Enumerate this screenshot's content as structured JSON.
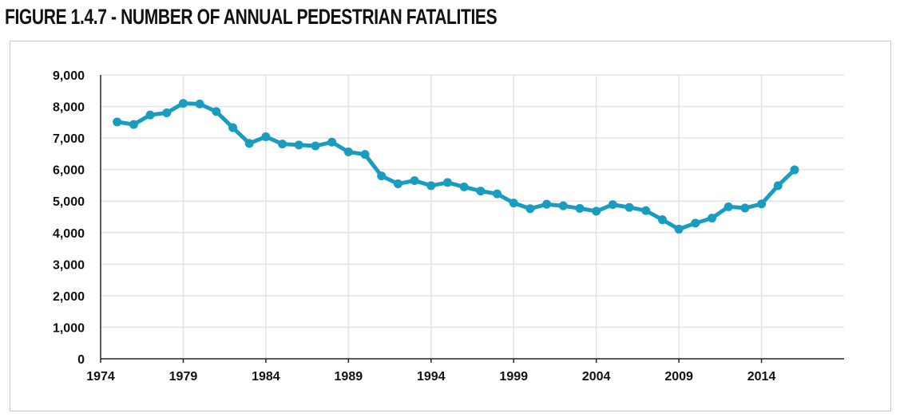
{
  "title": "FIGURE 1.4.7 - NUMBER OF ANNUAL PEDESTRIAN FATALITIES",
  "colors": {
    "line": "#1a9cc0",
    "grid": "#e3e3e3",
    "axis": "#222222",
    "text": "#111111"
  },
  "chart_data": {
    "type": "line",
    "title": "FIGURE 1.4.7 - NUMBER OF ANNUAL PEDESTRIAN FATALITIES",
    "xlabel": "",
    "ylabel": "",
    "xlim": [
      1974,
      2019
    ],
    "ylim": [
      0,
      9000
    ],
    "grid": true,
    "legend": "none",
    "x_ticks": [
      1974,
      1979,
      1984,
      1989,
      1994,
      1999,
      2004,
      2009,
      2014
    ],
    "x_tick_labels": [
      "1974",
      "1979",
      "1984",
      "1989",
      "1994",
      "1999",
      "2004",
      "2009",
      "2014"
    ],
    "y_ticks": [
      0,
      1000,
      2000,
      3000,
      4000,
      5000,
      6000,
      7000,
      8000,
      9000
    ],
    "y_tick_labels": [
      "0",
      "1,000",
      "2,000",
      "3,000",
      "4,000",
      "5,000",
      "6,000",
      "7,000",
      "8,000",
      "9,000"
    ],
    "series": [
      {
        "x": [
          1975,
          1976,
          1977,
          1978,
          1979,
          1980,
          1981,
          1982,
          1983,
          1984,
          1985,
          1986,
          1987,
          1988,
          1989,
          1990,
          1991,
          1992,
          1993,
          1994,
          1995,
          1996,
          1997,
          1998,
          1999,
          2000,
          2001,
          2002,
          2003,
          2004,
          2005,
          2006,
          2007,
          2008,
          2009,
          2010,
          2011,
          2012,
          2013,
          2014,
          2015,
          2016
        ],
        "values": [
          7510,
          7430,
          7730,
          7800,
          8100,
          8080,
          7840,
          7330,
          6830,
          7040,
          6810,
          6780,
          6750,
          6870,
          6560,
          6480,
          5800,
          5550,
          5650,
          5490,
          5590,
          5450,
          5320,
          5230,
          4940,
          4760,
          4900,
          4850,
          4770,
          4680,
          4890,
          4800,
          4700,
          4410,
          4110,
          4300,
          4460,
          4820,
          4780,
          4910,
          5490,
          5990
        ]
      }
    ]
  }
}
